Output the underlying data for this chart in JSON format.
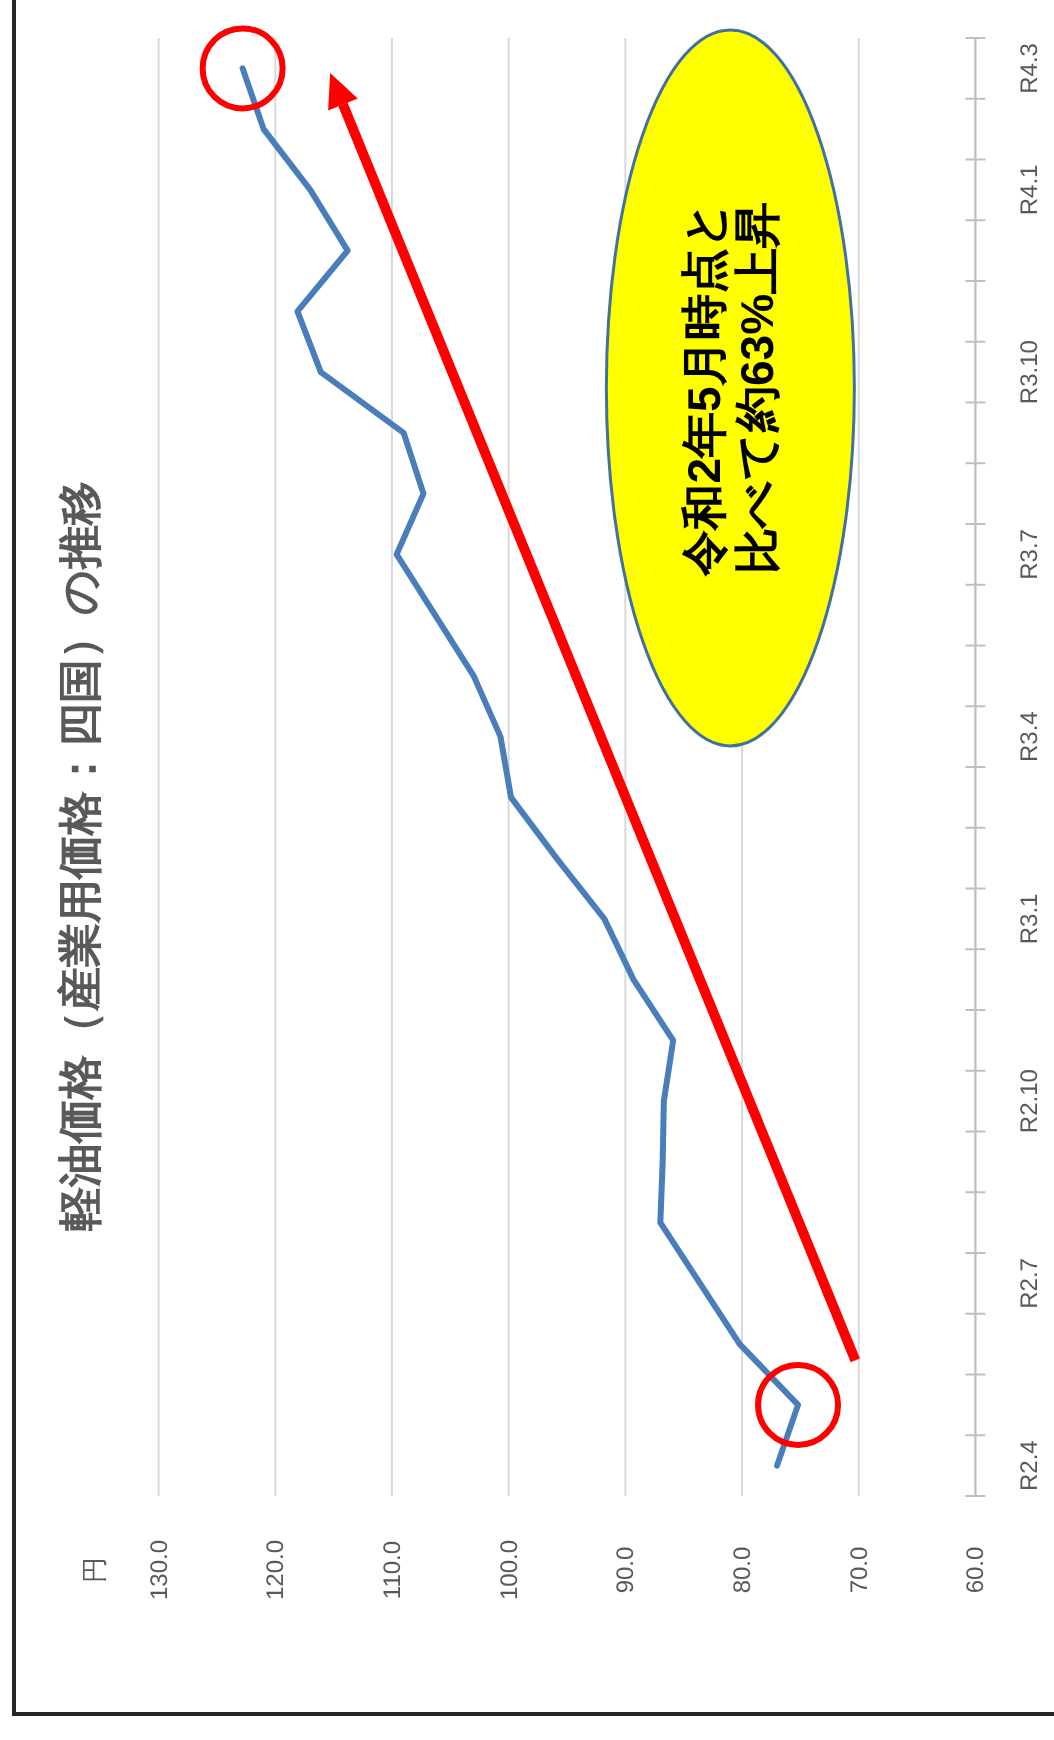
{
  "chart_data": {
    "type": "line",
    "orientation": "horizontal",
    "title": "軽油価格（産業用価格：四国）の推移",
    "ylabel": "円",
    "categories": [
      "R4.3",
      null,
      "R4.1",
      null,
      null,
      "R3.10",
      null,
      null,
      "R3.7",
      null,
      null,
      "R3.4",
      null,
      null,
      "R3.1",
      null,
      null,
      "R2.10",
      null,
      null,
      "R2.7",
      null,
      null,
      "R2.4"
    ],
    "series": [
      {
        "color": "#4a7ebb",
        "values": [
          122.8,
          121.0,
          117.0,
          113.8,
          118.1,
          116.1,
          109.0,
          107.3,
          109.6,
          106.3,
          103.0,
          100.7,
          99.8,
          95.9,
          91.8,
          89.3,
          85.9,
          86.7,
          86.8,
          87.0,
          83.6,
          80.2,
          75.2,
          77.0
        ]
      }
    ],
    "xlim": [
      130,
      60
    ],
    "xticks": [
      {
        "value": 130,
        "label": "130.0"
      },
      {
        "value": 120,
        "label": "120.0"
      },
      {
        "value": 110,
        "label": "110.0"
      },
      {
        "value": 100,
        "label": "100.0"
      },
      {
        "value": 90,
        "label": "90.0"
      },
      {
        "value": 80,
        "label": "80.0"
      },
      {
        "value": 70,
        "label": "70.0"
      },
      {
        "value": 60,
        "label": "60.0"
      }
    ],
    "grid": "x",
    "annotations": [
      "令和2年5月時点と比べて約63%上昇"
    ]
  }
}
